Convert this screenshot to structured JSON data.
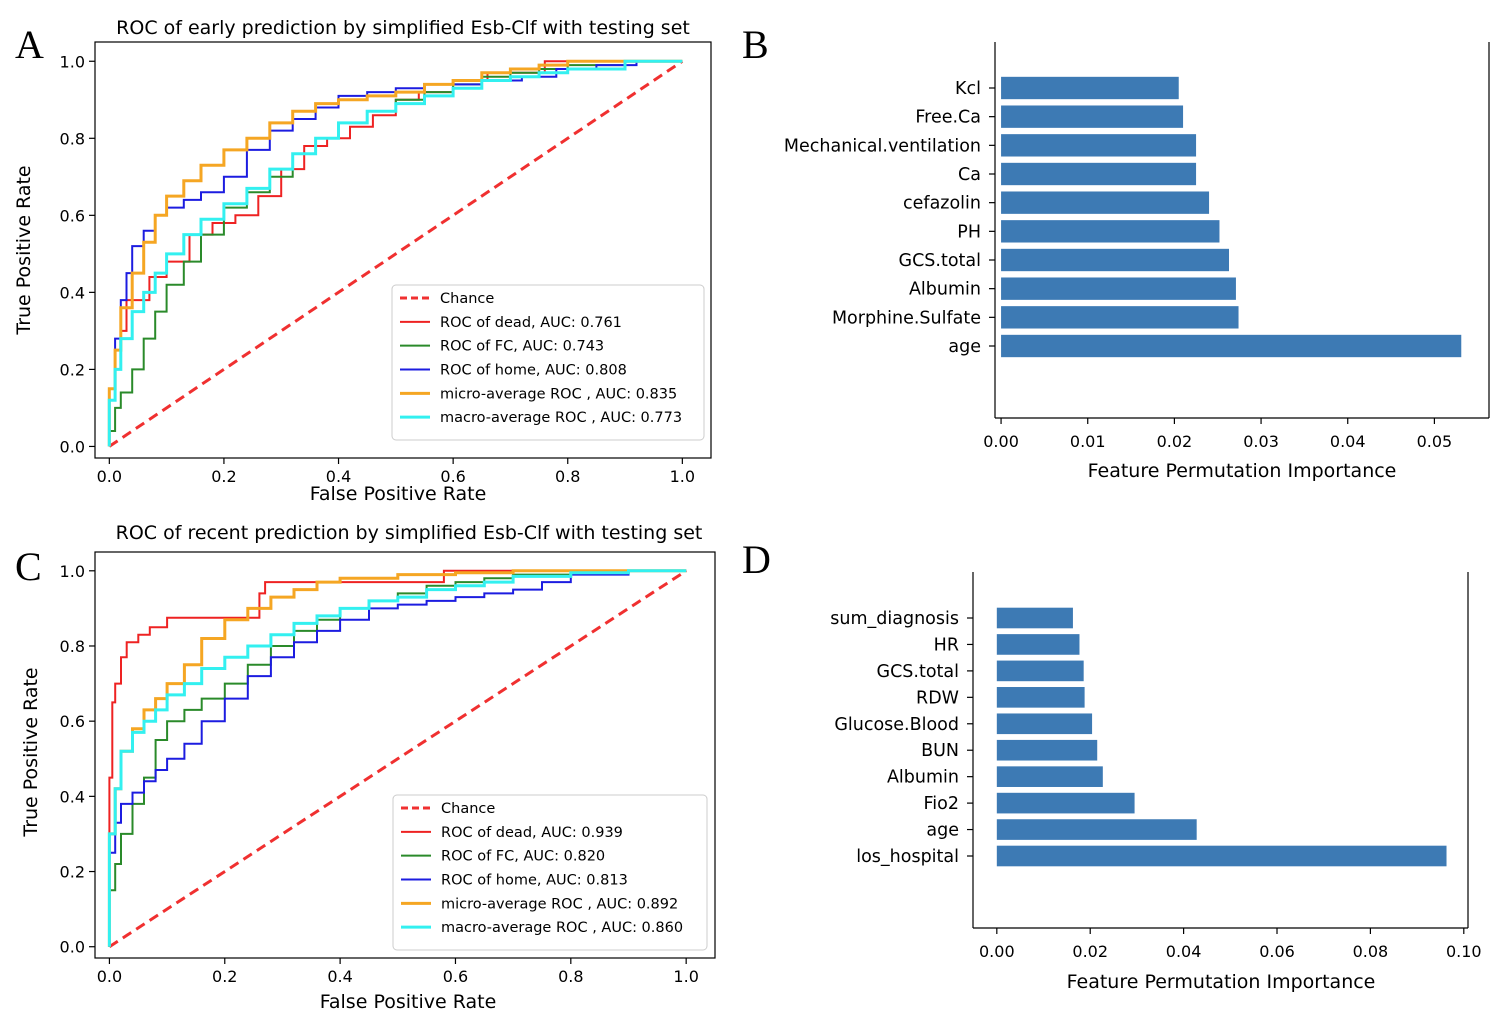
{
  "figure": {
    "panels": [
      "A",
      "B",
      "C",
      "D"
    ]
  },
  "chart_data": [
    {
      "panel": "A",
      "type": "line",
      "title": "ROC of early prediction by simplified Esb-Clf with testing set",
      "xlabel": "False Positive Rate",
      "ylabel": "True Positive Rate",
      "xlim": [
        -0.025,
        1.05
      ],
      "ylim": [
        -0.03,
        1.05
      ],
      "xticks": [
        "0.0",
        "0.2",
        "0.4",
        "0.6",
        "0.8",
        "1.0"
      ],
      "yticks": [
        "0.0",
        "0.2",
        "0.4",
        "0.6",
        "0.8",
        "1.0"
      ],
      "legend_position": "lower-right",
      "grid": false,
      "series": [
        {
          "name": "Chance",
          "color": "#f03030",
          "style": "dashed",
          "x": [
            0,
            1
          ],
          "y": [
            0,
            1
          ]
        },
        {
          "name": "ROC of dead, AUC: 0.761",
          "color": "#ee2222",
          "style": "solid",
          "x": [
            0,
            0.01,
            0.02,
            0.03,
            0.05,
            0.07,
            0.1,
            0.14,
            0.18,
            0.22,
            0.26,
            0.3,
            0.34,
            0.38,
            0.42,
            0.46,
            0.5,
            0.54,
            0.6,
            0.66,
            0.7,
            0.76,
            0.85,
            0.9,
            1
          ],
          "y": [
            0,
            0.15,
            0.25,
            0.3,
            0.38,
            0.38,
            0.44,
            0.48,
            0.55,
            0.58,
            0.6,
            0.65,
            0.72,
            0.78,
            0.8,
            0.83,
            0.86,
            0.9,
            0.92,
            0.95,
            0.97,
            0.97,
            1.0,
            1.0,
            1
          ]
        },
        {
          "name": "ROC of FC, AUC: 0.743",
          "color": "#2a8a2a",
          "style": "solid",
          "x": [
            0,
            0.01,
            0.02,
            0.04,
            0.06,
            0.08,
            0.1,
            0.13,
            0.16,
            0.2,
            0.24,
            0.28,
            0.32,
            0.36,
            0.4,
            0.45,
            0.5,
            0.55,
            0.6,
            0.65,
            0.7,
            0.75,
            0.8,
            0.9,
            1
          ],
          "y": [
            0,
            0.04,
            0.1,
            0.14,
            0.2,
            0.28,
            0.35,
            0.42,
            0.48,
            0.55,
            0.62,
            0.66,
            0.7,
            0.76,
            0.8,
            0.84,
            0.87,
            0.9,
            0.92,
            0.94,
            0.96,
            0.97,
            0.98,
            0.99,
            1
          ]
        },
        {
          "name": "ROC of home, AUC: 0.808",
          "color": "#1c1ce0",
          "style": "solid",
          "x": [
            0,
            0.01,
            0.02,
            0.03,
            0.04,
            0.06,
            0.08,
            0.1,
            0.13,
            0.16,
            0.2,
            0.24,
            0.28,
            0.32,
            0.36,
            0.4,
            0.45,
            0.5,
            0.55,
            0.6,
            0.65,
            0.72,
            0.78,
            0.85,
            0.92,
            1
          ],
          "y": [
            0,
            0.15,
            0.28,
            0.38,
            0.45,
            0.52,
            0.56,
            0.6,
            0.62,
            0.64,
            0.66,
            0.7,
            0.77,
            0.82,
            0.85,
            0.88,
            0.91,
            0.92,
            0.93,
            0.94,
            0.94,
            0.95,
            0.96,
            0.98,
            0.99,
            1
          ]
        },
        {
          "name": "micro-average ROC , AUC: 0.835",
          "color": "#f5a623",
          "style": "solid",
          "x": [
            0,
            0.01,
            0.02,
            0.04,
            0.06,
            0.08,
            0.1,
            0.13,
            0.16,
            0.2,
            0.24,
            0.28,
            0.32,
            0.36,
            0.4,
            0.45,
            0.5,
            0.55,
            0.6,
            0.65,
            0.7,
            0.75,
            0.8,
            0.9,
            1
          ],
          "y": [
            0,
            0.15,
            0.25,
            0.36,
            0.45,
            0.53,
            0.6,
            0.65,
            0.69,
            0.73,
            0.77,
            0.8,
            0.84,
            0.87,
            0.89,
            0.9,
            0.91,
            0.92,
            0.94,
            0.95,
            0.97,
            0.98,
            0.99,
            1.0,
            1
          ]
        },
        {
          "name": "macro-average ROC , AUC: 0.773",
          "color": "#33f0f0",
          "style": "solid",
          "x": [
            0,
            0.01,
            0.02,
            0.04,
            0.06,
            0.08,
            0.1,
            0.13,
            0.16,
            0.2,
            0.24,
            0.28,
            0.32,
            0.36,
            0.4,
            0.45,
            0.5,
            0.55,
            0.6,
            0.65,
            0.7,
            0.75,
            0.8,
            0.9,
            1
          ],
          "y": [
            0,
            0.12,
            0.2,
            0.28,
            0.35,
            0.4,
            0.45,
            0.5,
            0.55,
            0.59,
            0.63,
            0.67,
            0.72,
            0.76,
            0.8,
            0.84,
            0.87,
            0.89,
            0.91,
            0.93,
            0.95,
            0.96,
            0.97,
            0.98,
            1
          ]
        }
      ]
    },
    {
      "panel": "B",
      "type": "bar",
      "orientation": "horizontal",
      "xlabel": "Feature Permutation Importance",
      "ylabel": "",
      "xlim": [
        -0.0007,
        0.0563
      ],
      "xticks": [
        "0.00",
        "0.01",
        "0.02",
        "0.03",
        "0.04",
        "0.05"
      ],
      "bar_color": "#3d7ab4",
      "categories": [
        "Kcl",
        "Free.Ca",
        "Mechanical.ventilation",
        "Ca",
        "cefazolin",
        "PH",
        "GCS.total",
        "Albumin",
        "Morphine.Sulfate",
        "age"
      ],
      "values": [
        0.0205,
        0.021,
        0.0225,
        0.0225,
        0.024,
        0.0252,
        0.0263,
        0.0271,
        0.0274,
        0.0531
      ]
    },
    {
      "panel": "C",
      "type": "line",
      "title": "ROC of recent prediction by simplified Esb-Clf with testing set",
      "xlabel": "False Positive Rate",
      "ylabel": "True Positive Rate",
      "xlim": [
        -0.025,
        1.05
      ],
      "ylim": [
        -0.03,
        1.05
      ],
      "xticks": [
        "0.0",
        "0.2",
        "0.4",
        "0.6",
        "0.8",
        "1.0"
      ],
      "yticks": [
        "0.0",
        "0.2",
        "0.4",
        "0.6",
        "0.8",
        "1.0"
      ],
      "legend_position": "lower-right",
      "grid": false,
      "series": [
        {
          "name": "Chance",
          "color": "#f03030",
          "style": "dashed",
          "x": [
            0,
            1
          ],
          "y": [
            0,
            1
          ]
        },
        {
          "name": "ROC of dead, AUC: 0.939",
          "color": "#ee2222",
          "style": "solid",
          "x": [
            0,
            0.005,
            0.01,
            0.02,
            0.03,
            0.05,
            0.07,
            0.1,
            0.12,
            0.2,
            0.26,
            0.27,
            0.4,
            0.58,
            0.59,
            0.8,
            1
          ],
          "y": [
            0,
            0.45,
            0.65,
            0.7,
            0.77,
            0.81,
            0.83,
            0.85,
            0.875,
            0.875,
            0.875,
            0.94,
            0.97,
            0.97,
            1.0,
            1.0,
            1
          ]
        },
        {
          "name": "ROC of FC, AUC: 0.820",
          "color": "#2a8a2a",
          "style": "solid",
          "x": [
            0,
            0.01,
            0.02,
            0.04,
            0.06,
            0.08,
            0.1,
            0.13,
            0.16,
            0.2,
            0.24,
            0.28,
            0.32,
            0.36,
            0.4,
            0.45,
            0.5,
            0.55,
            0.6,
            0.65,
            0.7,
            0.8,
            0.9,
            1
          ],
          "y": [
            0,
            0.15,
            0.22,
            0.3,
            0.38,
            0.45,
            0.55,
            0.6,
            0.63,
            0.66,
            0.7,
            0.75,
            0.8,
            0.84,
            0.87,
            0.9,
            0.92,
            0.94,
            0.96,
            0.97,
            0.98,
            0.99,
            1.0,
            1
          ]
        },
        {
          "name": "ROC of home, AUC: 0.813",
          "color": "#1c1ce0",
          "style": "solid",
          "x": [
            0,
            0.01,
            0.02,
            0.04,
            0.06,
            0.08,
            0.1,
            0.13,
            0.16,
            0.2,
            0.24,
            0.28,
            0.32,
            0.36,
            0.4,
            0.45,
            0.5,
            0.55,
            0.6,
            0.65,
            0.7,
            0.75,
            0.8,
            0.9,
            1
          ],
          "y": [
            0,
            0.25,
            0.33,
            0.38,
            0.41,
            0.44,
            0.47,
            0.5,
            0.54,
            0.6,
            0.66,
            0.72,
            0.77,
            0.81,
            0.84,
            0.87,
            0.9,
            0.91,
            0.92,
            0.93,
            0.94,
            0.95,
            0.97,
            0.99,
            1
          ]
        },
        {
          "name": "micro-average ROC , AUC: 0.892",
          "color": "#f5a623",
          "style": "solid",
          "x": [
            0,
            0.01,
            0.02,
            0.04,
            0.06,
            0.08,
            0.1,
            0.13,
            0.16,
            0.2,
            0.24,
            0.28,
            0.32,
            0.36,
            0.4,
            0.45,
            0.5,
            0.55,
            0.6,
            0.65,
            0.7,
            0.8,
            0.9,
            1
          ],
          "y": [
            0,
            0.3,
            0.42,
            0.52,
            0.58,
            0.63,
            0.66,
            0.7,
            0.75,
            0.82,
            0.87,
            0.9,
            0.93,
            0.95,
            0.97,
            0.98,
            0.98,
            0.99,
            0.99,
            0.995,
            0.995,
            1.0,
            1.0,
            1
          ]
        },
        {
          "name": "macro-average ROC , AUC: 0.860",
          "color": "#33f0f0",
          "style": "solid",
          "x": [
            0,
            0.01,
            0.02,
            0.04,
            0.06,
            0.08,
            0.1,
            0.13,
            0.16,
            0.2,
            0.24,
            0.28,
            0.32,
            0.36,
            0.4,
            0.45,
            0.5,
            0.55,
            0.6,
            0.65,
            0.7,
            0.8,
            0.9,
            1
          ],
          "y": [
            0,
            0.3,
            0.42,
            0.52,
            0.57,
            0.6,
            0.63,
            0.67,
            0.7,
            0.74,
            0.77,
            0.8,
            0.83,
            0.86,
            0.88,
            0.9,
            0.92,
            0.93,
            0.95,
            0.96,
            0.97,
            0.985,
            0.995,
            1
          ]
        }
      ]
    },
    {
      "panel": "D",
      "type": "bar",
      "orientation": "horizontal",
      "xlabel": "Feature Permutation Importance",
      "ylabel": "",
      "xlim": [
        -0.0051,
        0.1009
      ],
      "xticks": [
        "0.00",
        "0.02",
        "0.04",
        "0.06",
        "0.08",
        "0.10"
      ],
      "bar_color": "#3d7ab4",
      "categories": [
        "sum_diagnosis",
        "HR",
        "GCS.total",
        "RDW",
        "Glucose.Blood",
        "BUN",
        "Albumin",
        "Fio2",
        "age",
        "los_hospital"
      ],
      "values": [
        0.0163,
        0.0177,
        0.0186,
        0.0188,
        0.0204,
        0.0215,
        0.0227,
        0.0295,
        0.0428,
        0.0963
      ]
    }
  ]
}
